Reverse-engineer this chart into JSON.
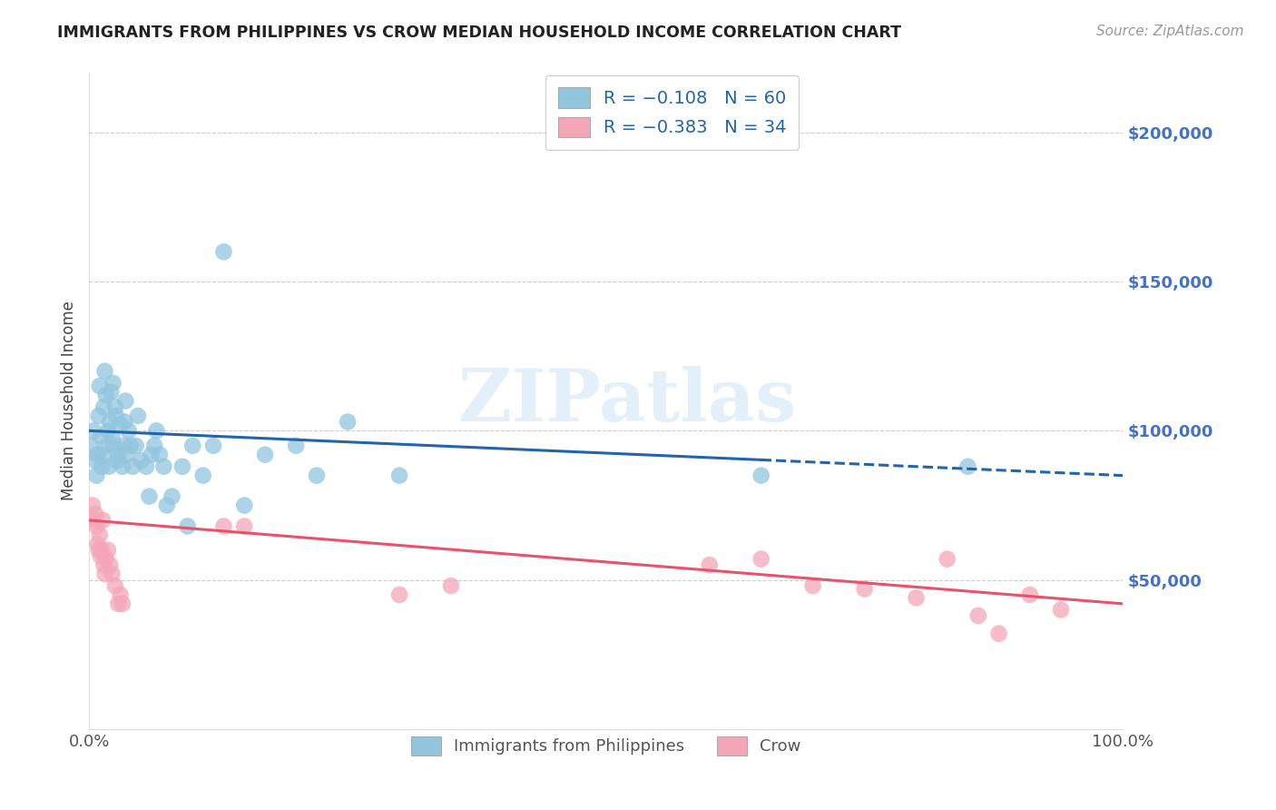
{
  "title": "IMMIGRANTS FROM PHILIPPINES VS CROW MEDIAN HOUSEHOLD INCOME CORRELATION CHART",
  "source": "Source: ZipAtlas.com",
  "ylabel": "Median Household Income",
  "yticks": [
    0,
    50000,
    100000,
    150000,
    200000
  ],
  "ytick_labels": [
    "",
    "$50,000",
    "$100,000",
    "$150,000",
    "$200,000"
  ],
  "ytick_color": "#4472c4",
  "xlim": [
    0.0,
    1.0
  ],
  "ylim": [
    0,
    220000
  ],
  "legend_blue_label": "R = −0.108   N = 60",
  "legend_pink_label": "R = −0.383   N = 34",
  "legend_label_blue": "Immigrants from Philippines",
  "legend_label_pink": "Crow",
  "blue_color": "#92c5de",
  "pink_color": "#f4a6b8",
  "line_blue_color": "#2166ac",
  "line_pink_color": "#e8526a",
  "watermark": "ZIPatlas",
  "blue_scatter_alpha": 0.75,
  "pink_scatter_alpha": 0.75,
  "blue_x": [
    0.002,
    0.004,
    0.006,
    0.007,
    0.008,
    0.009,
    0.01,
    0.011,
    0.012,
    0.013,
    0.014,
    0.015,
    0.016,
    0.017,
    0.018,
    0.019,
    0.02,
    0.021,
    0.022,
    0.023,
    0.024,
    0.025,
    0.026,
    0.027,
    0.028,
    0.03,
    0.032,
    0.033,
    0.034,
    0.035,
    0.036,
    0.038,
    0.04,
    0.042,
    0.045,
    0.047,
    0.05,
    0.055,
    0.058,
    0.06,
    0.063,
    0.065,
    0.068,
    0.072,
    0.075,
    0.08,
    0.09,
    0.095,
    0.1,
    0.11,
    0.12,
    0.13,
    0.15,
    0.17,
    0.2,
    0.22,
    0.25,
    0.3,
    0.65,
    0.85
  ],
  "blue_y": [
    95000,
    100000,
    90000,
    85000,
    92000,
    105000,
    115000,
    98000,
    88000,
    92000,
    108000,
    120000,
    112000,
    95000,
    100000,
    88000,
    103000,
    113000,
    98000,
    116000,
    95000,
    108000,
    105000,
    90000,
    92000,
    102000,
    88000,
    95000,
    103000,
    110000,
    92000,
    100000,
    95000,
    88000,
    95000,
    105000,
    90000,
    88000,
    78000,
    92000,
    95000,
    100000,
    92000,
    88000,
    75000,
    78000,
    88000,
    68000,
    95000,
    85000,
    95000,
    160000,
    75000,
    92000,
    95000,
    85000,
    103000,
    85000,
    85000,
    88000
  ],
  "pink_x": [
    0.003,
    0.005,
    0.006,
    0.007,
    0.008,
    0.009,
    0.01,
    0.011,
    0.012,
    0.013,
    0.014,
    0.015,
    0.016,
    0.018,
    0.02,
    0.022,
    0.025,
    0.028,
    0.03,
    0.032,
    0.13,
    0.15,
    0.3,
    0.35,
    0.6,
    0.65,
    0.7,
    0.75,
    0.8,
    0.83,
    0.86,
    0.88,
    0.91,
    0.94
  ],
  "pink_y": [
    75000,
    70000,
    72000,
    68000,
    62000,
    60000,
    65000,
    58000,
    60000,
    70000,
    55000,
    52000,
    57000,
    60000,
    55000,
    52000,
    48000,
    42000,
    45000,
    42000,
    68000,
    68000,
    45000,
    48000,
    55000,
    57000,
    48000,
    47000,
    44000,
    57000,
    38000,
    32000,
    45000,
    40000
  ],
  "blue_line_solid_end": 0.65,
  "blue_line_x_start": 0.0,
  "blue_line_x_end": 1.0,
  "pink_line_x_start": 0.0,
  "pink_line_x_end": 1.0
}
